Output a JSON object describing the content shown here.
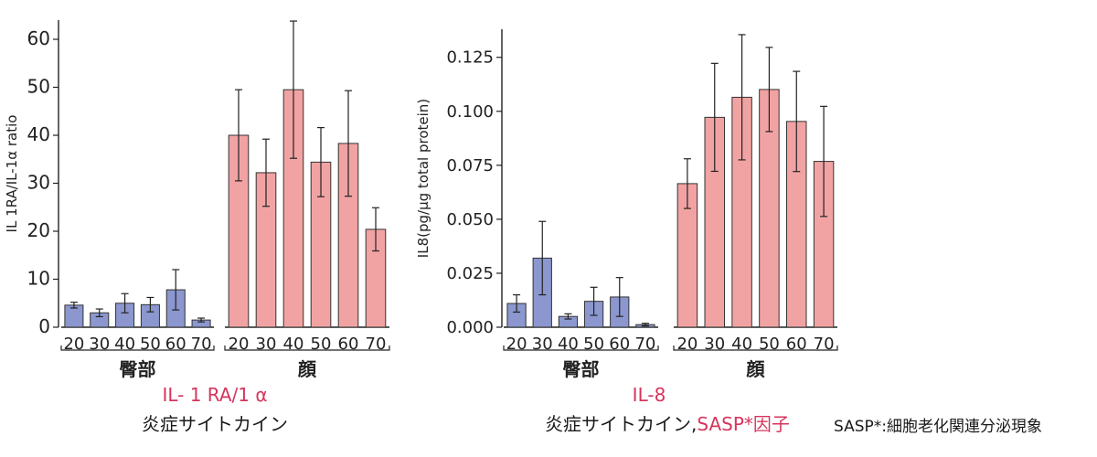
{
  "colors": {
    "arm": "#8b97ce",
    "face": "#f1a3a3",
    "accent": "#d6355c",
    "axis": "#222222"
  },
  "chart_data": [
    {
      "type": "bar",
      "ylabel": "IL 1RA/IL-1α ratio",
      "ylim": [
        0,
        64
      ],
      "yticks": [
        "0",
        "10",
        "20",
        "30",
        "40",
        "50",
        "60"
      ],
      "ytick_values": [
        0,
        10,
        20,
        30,
        40,
        50,
        60
      ],
      "groups": [
        {
          "name": "臀部",
          "color_key": "arm",
          "categories": [
            "20",
            "30",
            "40",
            "50",
            "60",
            "70"
          ],
          "values": [
            4.6,
            3.0,
            5.0,
            4.7,
            7.8,
            1.5
          ],
          "errors": [
            0.6,
            0.8,
            2.0,
            1.5,
            4.2,
            0.4
          ]
        },
        {
          "name": "顔",
          "color_key": "face",
          "categories": [
            "20",
            "30",
            "40",
            "50",
            "60",
            "70"
          ],
          "values": [
            40.0,
            32.2,
            49.5,
            34.4,
            38.3,
            20.4
          ],
          "errors": [
            9.5,
            7.0,
            14.3,
            7.2,
            11.0,
            4.5
          ]
        }
      ],
      "caption_red": "IL- 1 RA/1 α",
      "caption": "炎症サイトカイン"
    },
    {
      "type": "bar",
      "ylabel": "IL8(pg/μg total protein)",
      "ylim": [
        0,
        0.138
      ],
      "yticks": [
        "0.000",
        "0.025",
        "0.050",
        "0.075",
        "0.100",
        "0.125"
      ],
      "ytick_values": [
        0,
        0.025,
        0.05,
        0.075,
        0.1,
        0.125
      ],
      "groups": [
        {
          "name": "臀部",
          "color_key": "arm",
          "categories": [
            "20",
            "30",
            "40",
            "50",
            "60",
            "70"
          ],
          "values": [
            0.011,
            0.032,
            0.005,
            0.012,
            0.014,
            0.0012
          ],
          "errors": [
            0.004,
            0.017,
            0.0012,
            0.0065,
            0.009,
            0.0006
          ]
        },
        {
          "name": "顔",
          "color_key": "face",
          "categories": [
            "20",
            "30",
            "40",
            "50",
            "60",
            "70"
          ],
          "values": [
            0.0665,
            0.0972,
            0.1065,
            0.1101,
            0.0953,
            0.0768
          ],
          "errors": [
            0.0115,
            0.025,
            0.029,
            0.0195,
            0.0232,
            0.0255
          ]
        }
      ],
      "caption_red": "IL-8",
      "caption": "炎症サイトカイン,",
      "caption_suffix_red": "SASP*因子"
    }
  ],
  "footnote": "SASP*:細胞老化関連分泌現象"
}
